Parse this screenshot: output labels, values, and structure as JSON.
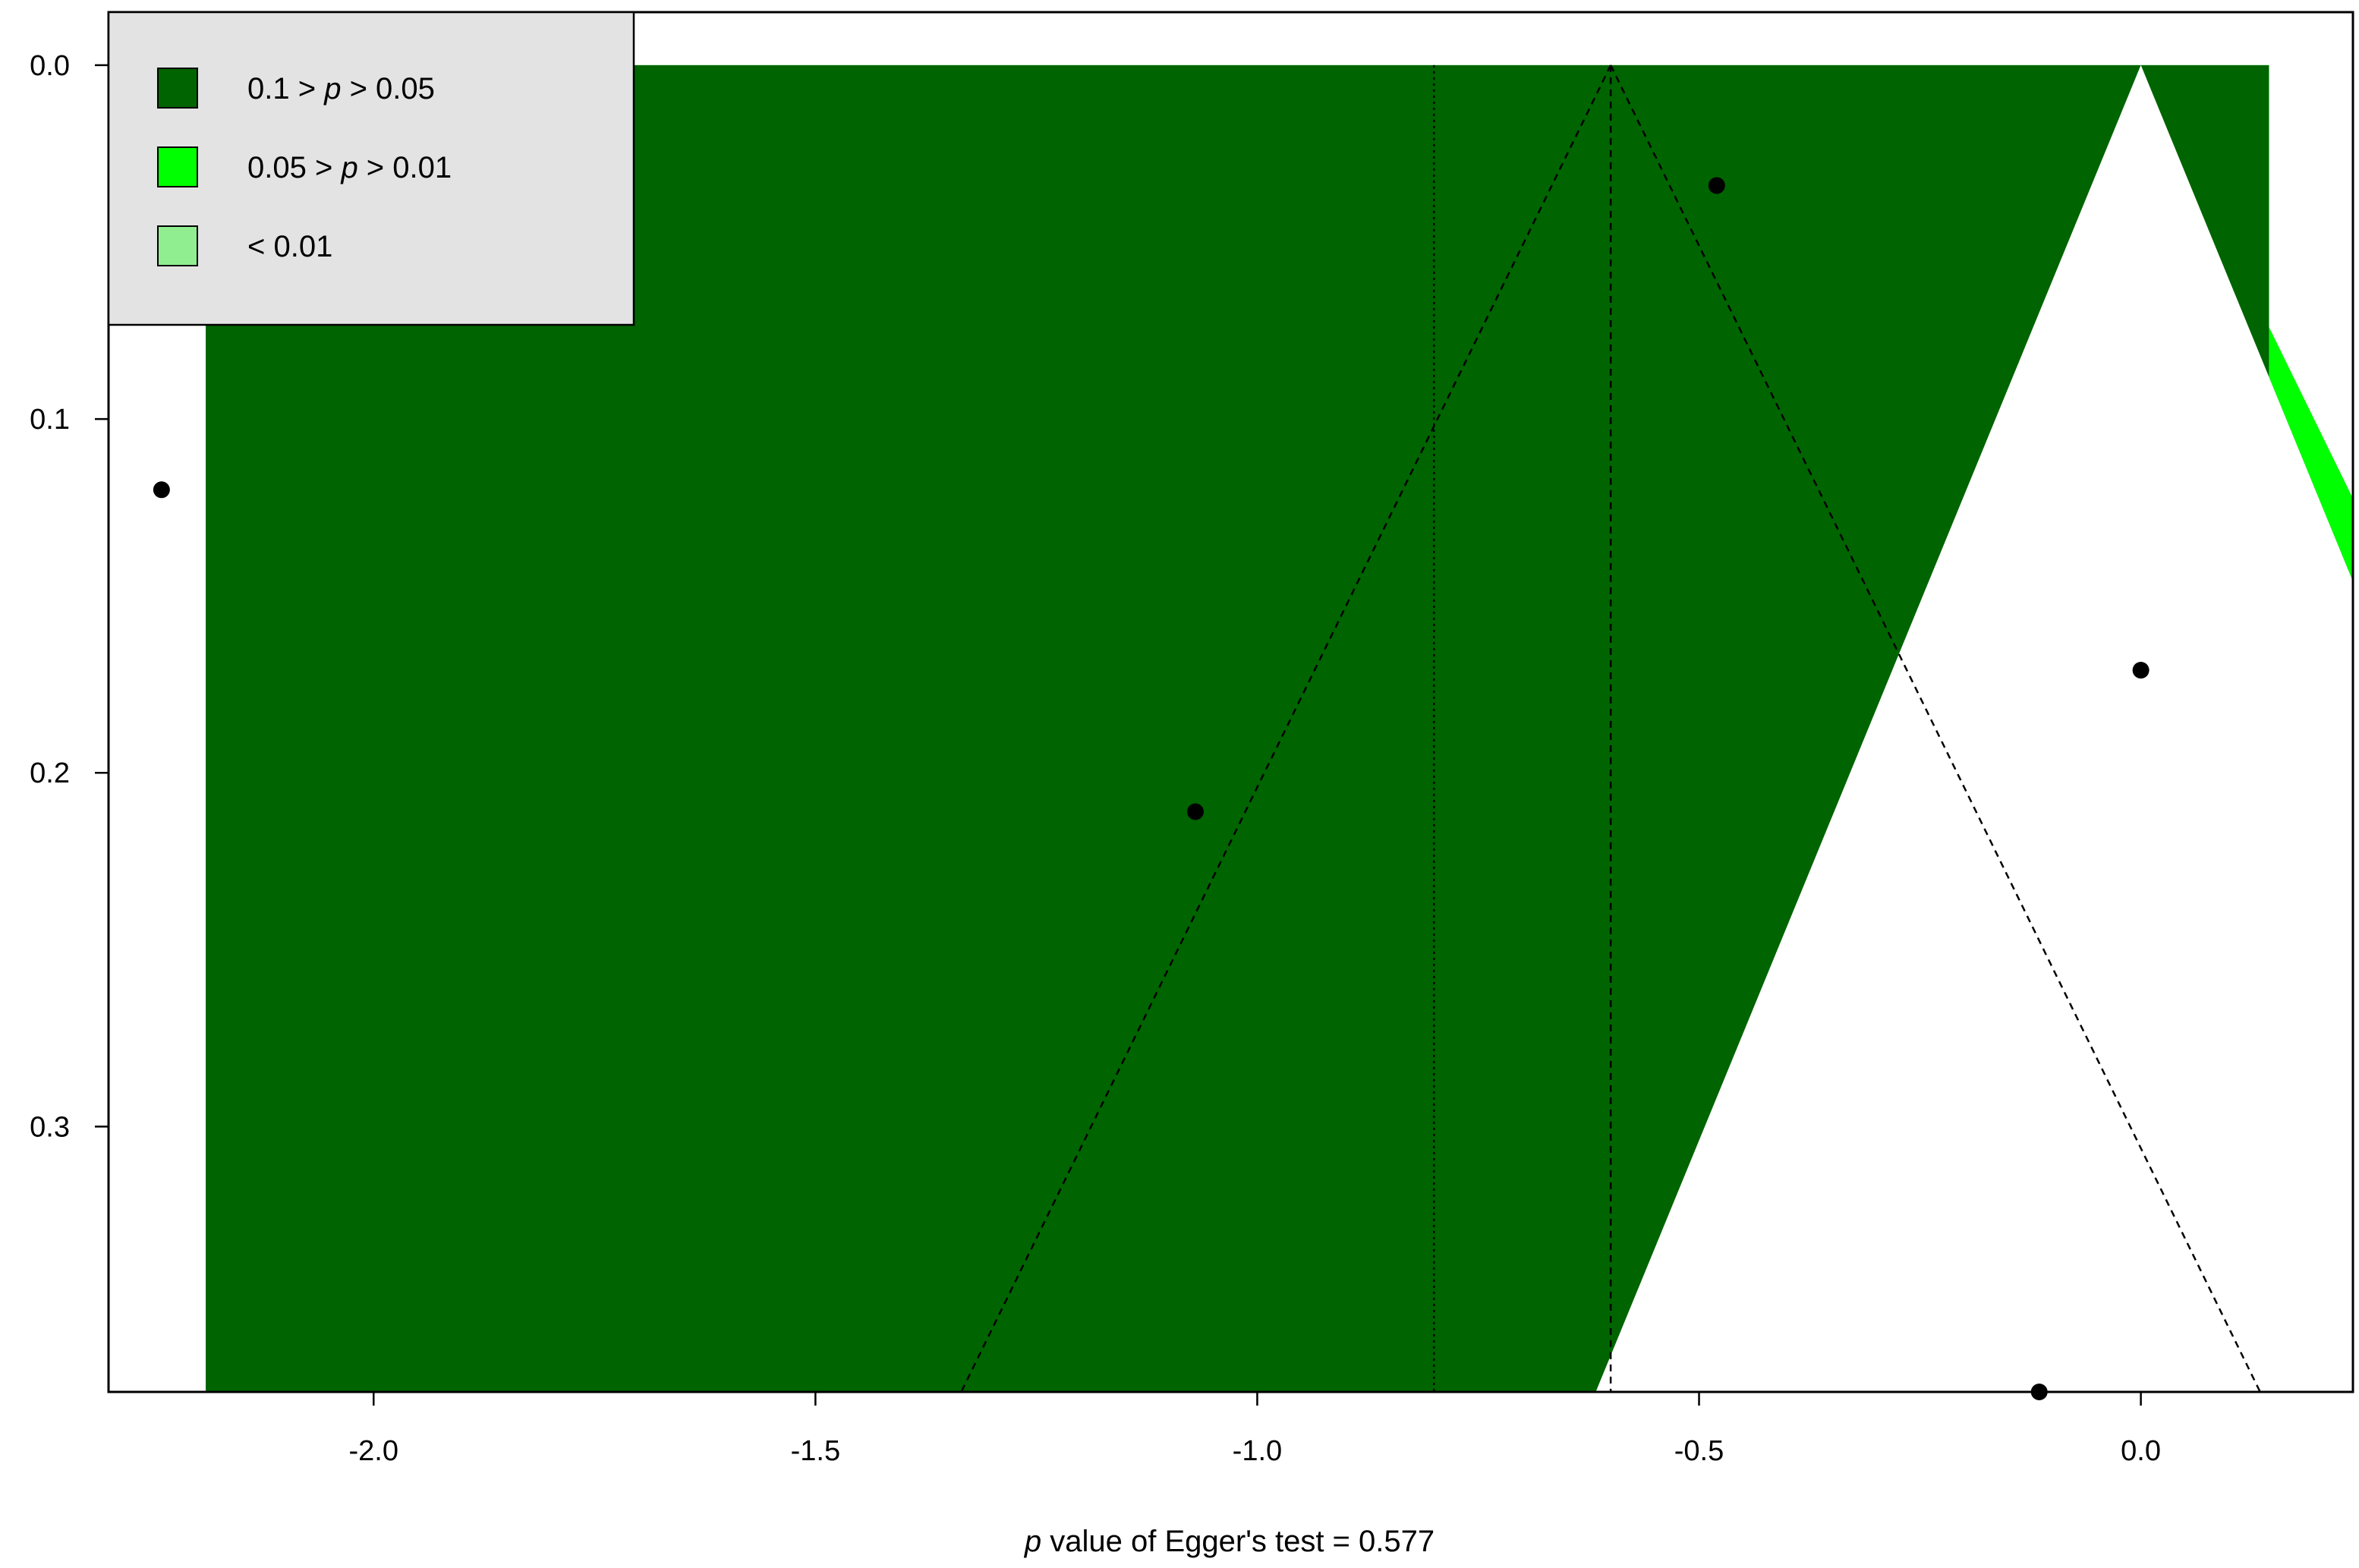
{
  "chart_data": {
    "type": "scatter",
    "subtype": "contour-enhanced funnel plot",
    "title": "",
    "xlabel": "",
    "ylabel": "",
    "caption": {
      "p_italic": "p",
      "text": " value of Egger's test = 0.577"
    },
    "xlim": [
      -2.3,
      0.24
    ],
    "ylim": [
      0.375,
      -0.015
    ],
    "y_reversed": true,
    "x_ticks": [
      -2.0,
      -1.5,
      -1.0,
      -0.5,
      0.0
    ],
    "x_tick_labels": [
      "-2.0",
      "-1.5",
      "-1.0",
      "-0.5",
      "0.0"
    ],
    "y_ticks": [
      0.0,
      0.1,
      0.2,
      0.3
    ],
    "y_tick_labels": [
      "0.0",
      "0.1",
      "0.2",
      "0.3"
    ],
    "region_x_range": [
      -2.19,
      0.145
    ],
    "max_se": 0.375,
    "contours": [
      {
        "name": "< 0.01",
        "z": 2.576,
        "color": "#90EE90"
      },
      {
        "name": "0.05 > p > 0.01",
        "z": 1.96,
        "color": "#00FF00"
      },
      {
        "name": "0.1 > p > 0.05",
        "z": 1.645,
        "color": "#006400"
      }
    ],
    "funnel": {
      "center": -0.6,
      "z": 1.96,
      "line_style": "dashed"
    },
    "reference_line": {
      "x": -0.8,
      "line_style": "dotted"
    },
    "null_line": {
      "x": -0.6,
      "line_style": "dashed"
    },
    "points": [
      {
        "x": -2.24,
        "y": 0.12
      },
      {
        "x": -1.07,
        "y": 0.211
      },
      {
        "x": -0.48,
        "y": 0.034
      },
      {
        "x": 0.0,
        "y": 0.171
      },
      {
        "x": -0.115,
        "y": 0.375
      }
    ],
    "legend": {
      "position": "top-left",
      "background": "#E3E3E3",
      "entries": [
        {
          "pre": "0.1 > ",
          "italic": "p",
          "post": " > 0.05",
          "color": "#006400"
        },
        {
          "pre": "0.05 > ",
          "italic": "p",
          "post": " > 0.01",
          "color": "#00FF00"
        },
        {
          "pre": "< 0.01",
          "italic": "",
          "post": "",
          "color": "#90EE90"
        }
      ]
    },
    "grid": false
  }
}
